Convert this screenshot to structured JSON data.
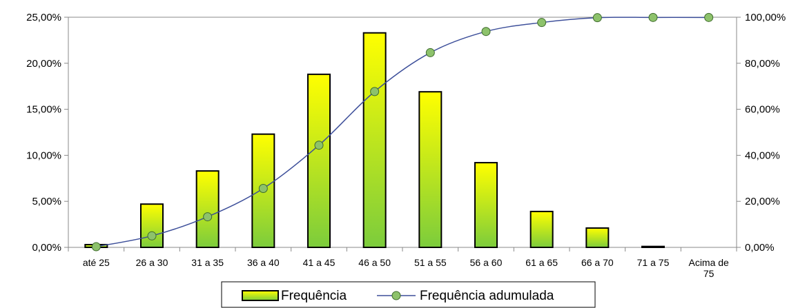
{
  "chart_data": {
    "type": "bar",
    "categories": [
      "até 25",
      "26 a 30",
      "31 a 35",
      "36 a 40",
      "41 a 45",
      "46 a 50",
      "51 a 55",
      "56 a 60",
      "61 a 65",
      "66 a 70",
      "71 a 75",
      "Acima de 75"
    ],
    "series": [
      {
        "name": "Frequência",
        "type": "bar",
        "axis": "left",
        "values": [
          0.3,
          4.7,
          8.3,
          12.3,
          18.8,
          23.3,
          16.9,
          9.2,
          3.9,
          2.1,
          0.1,
          0.0
        ]
      },
      {
        "name": "Frequência adumulada",
        "type": "line",
        "axis": "right",
        "values": [
          0.3,
          5.0,
          13.3,
          25.6,
          44.4,
          67.7,
          84.6,
          93.8,
          97.7,
          99.8,
          99.9,
          99.9
        ]
      }
    ],
    "y_left": {
      "min": 0,
      "max": 25,
      "step": 5,
      "tick_labels": [
        "0,00%",
        "5,00%",
        "10,00%",
        "15,00%",
        "20,00%",
        "25,00%"
      ]
    },
    "y_right": {
      "min": 0,
      "max": 100,
      "step": 20,
      "tick_labels": [
        "0,00%",
        "20,00%",
        "40,00%",
        "60,00%",
        "80,00%",
        "100,00%"
      ]
    },
    "grid": false,
    "legend_position": "bottom-center",
    "colors": {
      "bar_top": "#ffff00",
      "bar_bottom": "#7ccc3c",
      "bar_stroke": "#000000",
      "line": "#3d4f9a",
      "marker_fill": "#8dc26b",
      "marker_stroke": "#3d6a2c"
    }
  }
}
